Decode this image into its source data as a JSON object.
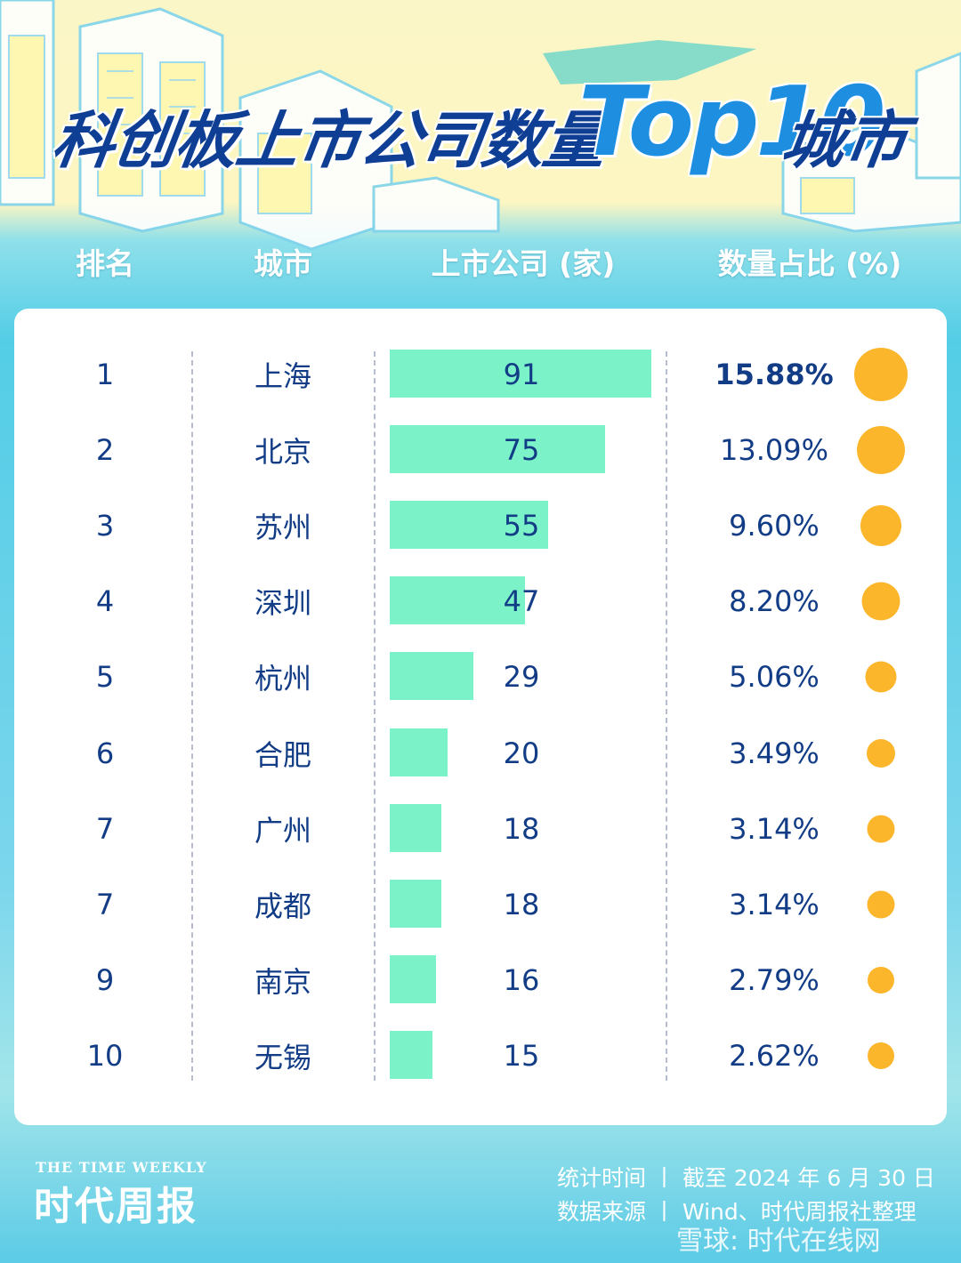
{
  "title": {
    "main": "科创板上市公司数量",
    "highlight": "Top10",
    "suffix": "城市"
  },
  "headers": {
    "rank": "排名",
    "city": "城市",
    "count": "上市公司 (家)",
    "share": "数量占比 (%)"
  },
  "chart_data": {
    "type": "table",
    "title": "科创板上市公司数量Top10城市",
    "columns": [
      "排名",
      "城市",
      "上市公司 (家)",
      "数量占比 (%)"
    ],
    "rows": [
      {
        "rank": "1",
        "city": "上海",
        "count": 91,
        "share": "15.88%"
      },
      {
        "rank": "2",
        "city": "北京",
        "count": 75,
        "share": "13.09%"
      },
      {
        "rank": "3",
        "city": "苏州",
        "count": 55,
        "share": "9.60%"
      },
      {
        "rank": "4",
        "city": "深圳",
        "count": 47,
        "share": "8.20%"
      },
      {
        "rank": "5",
        "city": "杭州",
        "count": 29,
        "share": "5.06%"
      },
      {
        "rank": "6",
        "city": "合肥",
        "count": 20,
        "share": "3.49%"
      },
      {
        "rank": "7",
        "city": "广州",
        "count": 18,
        "share": "3.14%"
      },
      {
        "rank": "7",
        "city": "成都",
        "count": 18,
        "share": "3.14%"
      },
      {
        "rank": "9",
        "city": "南京",
        "count": 16,
        "share": "2.79%"
      },
      {
        "rank": "10",
        "city": "无锡",
        "count": 15,
        "share": "2.62%"
      }
    ],
    "bar_color": "#7cf2c8",
    "dot_color": "#fbb62c"
  },
  "footer": {
    "brand_en": "THE TIME WEEKLY",
    "brand_cn": "时代周报",
    "stat_time": "统计时间 丨 截至 2024 年 6 月 30 日",
    "source": "数据来源 丨 Wind、时代周报社整理",
    "watermark": "雪球: 时代在线网"
  },
  "colors": {
    "title_blue": "#0f3f95",
    "accent_blue": "#1e8fe0",
    "text_navy": "#123c86",
    "teal_bg": "#53cde6",
    "cream_bg": "#fbf6c7"
  }
}
